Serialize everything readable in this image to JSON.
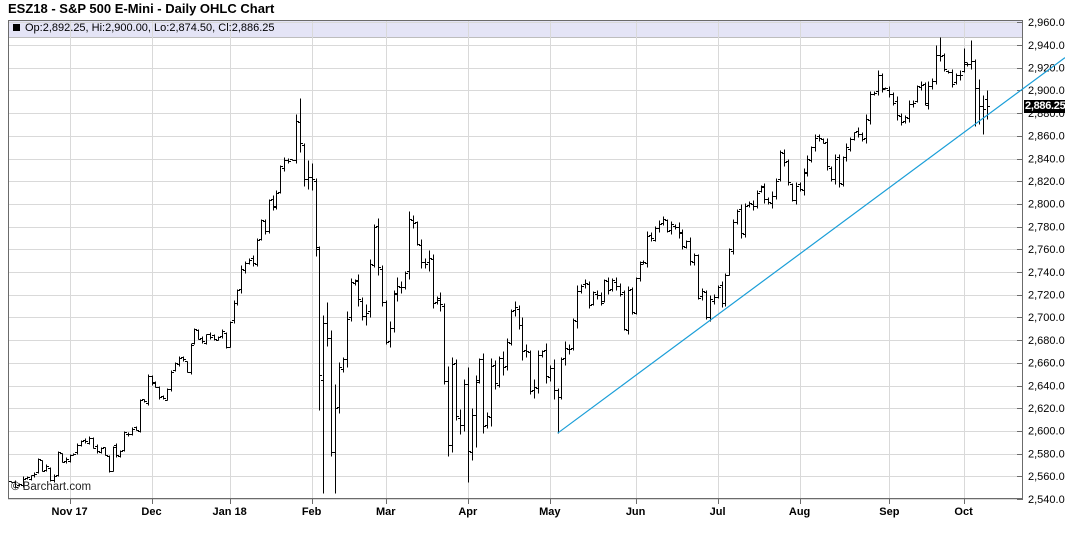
{
  "window": {
    "title": "ESZ18 - S&P 500 E-Mini - Daily OHLC Chart"
  },
  "legend": {
    "swatch_color": "#000000",
    "text": "Op:2,892.25, Hi:2,900.00, Lo:2,874.50, Cl:2,886.25"
  },
  "price_label": {
    "text": "2,886.25",
    "value": 2886.25,
    "bg": "#000000",
    "fg": "#ffffff"
  },
  "watermark": "© Barchart.com",
  "colors": {
    "bar": "#000000",
    "grid": "#d9d9d9",
    "frame": "#6b6b6b",
    "legend_bg": "#e4e4f6",
    "legend_border": "#bdbdbd",
    "trendline": "#1a9ed8",
    "axis_text": "#000000",
    "tick": "#6b6b6b",
    "background": "#ffffff"
  },
  "chart_data": {
    "type": "bar",
    "subtype": "ohlc-daily",
    "title": "ESZ18 - S&P 500 E-Mini - Daily OHLC Chart",
    "symbol": "ESZ18",
    "legend_position": "top",
    "grid": true,
    "y_axis": {
      "side": "right",
      "min": 2540,
      "max": 2960,
      "step": 20,
      "tick_labels": [
        "2,960.00",
        "2,940.00",
        "2,920.00",
        "2,900.00",
        "2,880.00",
        "2,860.00",
        "2,840.00",
        "2,820.00",
        "2,800.00",
        "2,780.00",
        "2,760.00",
        "2,740.00",
        "2,720.00",
        "2,700.00",
        "2,680.00",
        "2,660.00",
        "2,640.00",
        "2,620.00",
        "2,600.00",
        "2,580.00",
        "2,560.00",
        "2,540.00"
      ]
    },
    "x_axis": {
      "tick_labels": [
        "Nov 17",
        "Dec",
        "Jan 18",
        "Feb",
        "Mar",
        "Apr",
        "May",
        "Jun",
        "Jul",
        "Aug",
        "Sep",
        "Oct"
      ],
      "tick_indices": [
        15,
        36,
        56,
        77,
        96,
        117,
        138,
        160,
        181,
        202,
        225,
        244
      ]
    },
    "last_bar": {
      "open": 2892.25,
      "high": 2900.0,
      "low": 2874.5,
      "close": 2886.25
    },
    "closes": [
      2555,
      2551,
      2553,
      2558,
      2559,
      2561,
      2562,
      2575,
      2565,
      2569,
      2557,
      2560,
      2581,
      2573,
      2575,
      2579,
      2580,
      2588,
      2591,
      2591,
      2594,
      2585,
      2582,
      2585,
      2579,
      2565,
      2586,
      2579,
      2582,
      2599,
      2597,
      2602,
      2601,
      2627,
      2626,
      2648,
      2642,
      2639,
      2630,
      2629,
      2637,
      2652,
      2660,
      2664,
      2663,
      2652,
      2676,
      2690,
      2681,
      2679,
      2685,
      2683,
      2681,
      2683,
      2688,
      2674,
      2696,
      2713,
      2724,
      2743,
      2748,
      2751,
      2748,
      2768,
      2786,
      2776,
      2803,
      2798,
      2810,
      2833,
      2839,
      2838,
      2839,
      2873,
      2854,
      2822,
      2824,
      2822,
      2762,
      2649,
      2695,
      2682,
      2581,
      2620,
      2656,
      2663,
      2699,
      2731,
      2732,
      2716,
      2701,
      2704,
      2747,
      2780,
      2744,
      2714,
      2678,
      2691,
      2721,
      2728,
      2727,
      2739,
      2787,
      2783,
      2765,
      2749,
      2747,
      2752,
      2713,
      2717,
      2712,
      2644,
      2588,
      2659,
      2613,
      2605,
      2641,
      2582,
      2614,
      2645,
      2663,
      2604,
      2613,
      2657,
      2642,
      2664,
      2656,
      2678,
      2706,
      2709,
      2693,
      2670,
      2670,
      2635,
      2639,
      2667,
      2670,
      2648,
      2655,
      2636,
      2630,
      2663,
      2673,
      2672,
      2698,
      2723,
      2728,
      2730,
      2711,
      2722,
      2720,
      2713,
      2733,
      2724,
      2733,
      2728,
      2721,
      2690,
      2724,
      2705,
      2735,
      2747,
      2749,
      2772,
      2770,
      2779,
      2782,
      2787,
      2776,
      2782,
      2780,
      2774,
      2763,
      2767,
      2750,
      2755,
      2717,
      2723,
      2700,
      2716,
      2718,
      2727,
      2713,
      2737,
      2760,
      2784,
      2794,
      2774,
      2798,
      2801,
      2798,
      2810,
      2816,
      2804,
      2802,
      2807,
      2820,
      2846,
      2837,
      2819,
      2803,
      2816,
      2813,
      2827,
      2840,
      2850,
      2858,
      2858,
      2854,
      2833,
      2822,
      2840,
      2818,
      2841,
      2850,
      2857,
      2863,
      2862,
      2857,
      2875,
      2897,
      2898,
      2914,
      2901,
      2902,
      2897,
      2889,
      2878,
      2872,
      2877,
      2888,
      2889,
      2904,
      2905,
      2889,
      2904,
      2908,
      2931,
      2930,
      2919,
      2916,
      2906,
      2914,
      2914,
      2925,
      2923,
      2926,
      2902,
      2886,
      2884,
      2886.25
    ],
    "ohlc_overrides": {
      "73": [
        2839,
        2879,
        2836,
        2873
      ],
      "74": [
        2872,
        2893,
        2846,
        2854
      ],
      "75": [
        2852,
        2854,
        2816,
        2822
      ],
      "76": [
        2822,
        2839,
        2813,
        2824
      ],
      "77": [
        2824,
        2836,
        2812,
        2822
      ],
      "78": [
        2820,
        2823,
        2754,
        2762
      ],
      "79": [
        2760,
        2763,
        2618,
        2649
      ],
      "80": [
        2645,
        2702,
        2545,
        2695
      ],
      "81": [
        2695,
        2714,
        2675,
        2682
      ],
      "82": [
        2682,
        2689,
        2578,
        2581
      ],
      "83": [
        2581,
        2641,
        2545,
        2620
      ],
      "111": [
        2710,
        2713,
        2641,
        2644
      ],
      "112": [
        2644,
        2657,
        2578,
        2588
      ],
      "117": [
        2641,
        2656,
        2555,
        2582
      ],
      "119": [
        2614,
        2649,
        2586,
        2645
      ],
      "140": [
        2636,
        2638,
        2598,
        2630
      ],
      "237": [
        2908,
        2940,
        2906,
        2931
      ],
      "238": [
        2931,
        2947,
        2926,
        2930
      ],
      "244": [
        2917,
        2937,
        2916,
        2925
      ],
      "246": [
        2923,
        2944,
        2919,
        2926
      ],
      "247": [
        2926,
        2928,
        2869,
        2902
      ],
      "248": [
        2902,
        2910,
        2870,
        2886
      ],
      "249": [
        2886,
        2896,
        2862,
        2884
      ],
      "250": [
        2892.25,
        2900,
        2874.5,
        2886.25
      ]
    },
    "trendline": {
      "start_index": 140,
      "start_price": 2598,
      "end_index": 250,
      "end_price": 2878,
      "extends_past_plot_to_image_right_edge": true
    }
  }
}
